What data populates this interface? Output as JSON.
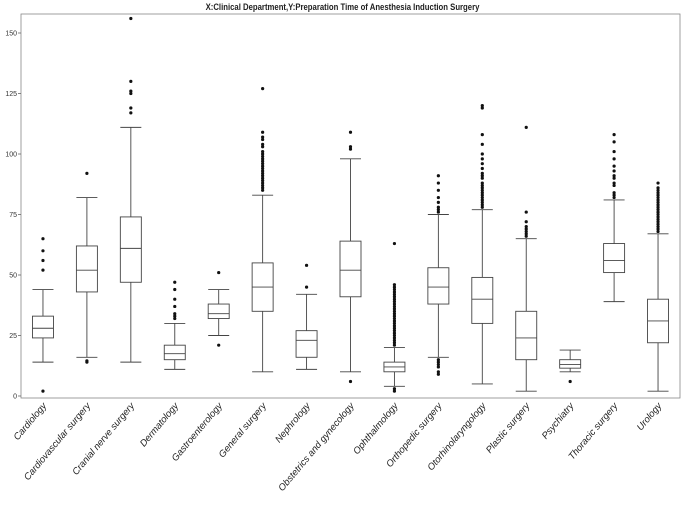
{
  "chart_data": {
    "type": "boxplot",
    "title": "X:Clinical Department,Y:Preparation Time of Anesthesia Induction Surgery",
    "xlabel": "",
    "ylabel": "",
    "ylim": [
      0,
      155
    ],
    "yticks": [
      0,
      25,
      50,
      75,
      100,
      125,
      150
    ],
    "grid": false,
    "categories": [
      "Cardiology",
      "Cardiovascular surgery",
      "Cranial nerve surgery",
      "Dermatology",
      "Gastroenterology",
      "General surgery",
      "Nephrology",
      "Obstetrics and gynecology",
      "Ophthalmology",
      "Orthopedic surgery",
      "Otorhinolaryngology",
      "Plastic surgery",
      "Psychiatry",
      "Thoracic surgery",
      "Urology"
    ],
    "boxes": [
      {
        "whisker_low": 14,
        "q1": 24,
        "median": 28,
        "q3": 33,
        "whisker_high": 44,
        "outliers": [
          2,
          52,
          56,
          60,
          65
        ]
      },
      {
        "whisker_low": 16,
        "q1": 43,
        "median": 52,
        "q3": 62,
        "whisker_high": 82,
        "outliers": [
          14,
          14.5,
          92
        ]
      },
      {
        "whisker_low": 14,
        "q1": 47,
        "median": 61,
        "q3": 74,
        "whisker_high": 111,
        "outliers": [
          117,
          119,
          125,
          126,
          130,
          156
        ]
      },
      {
        "whisker_low": 11,
        "q1": 15,
        "median": 17.5,
        "q3": 21,
        "whisker_high": 30,
        "outliers": [
          32,
          33,
          34,
          37,
          40,
          44,
          47
        ]
      },
      {
        "whisker_low": 25,
        "q1": 32,
        "median": 34,
        "q3": 38,
        "whisker_high": 44,
        "outliers": [
          21,
          51
        ]
      },
      {
        "whisker_low": 10,
        "q1": 35,
        "median": 45,
        "q3": 55,
        "whisker_high": 83,
        "outliers": [
          85,
          86,
          87,
          88,
          89,
          90,
          91,
          92,
          93,
          94,
          95,
          96,
          97,
          98,
          99,
          100,
          101,
          103,
          104,
          106,
          107,
          109,
          127
        ]
      },
      {
        "whisker_low": 11,
        "q1": 16,
        "median": 23,
        "q3": 27,
        "whisker_high": 42,
        "outliers": [
          45,
          54
        ]
      },
      {
        "whisker_low": 10,
        "q1": 41,
        "median": 52,
        "q3": 64,
        "whisker_high": 98,
        "outliers": [
          6,
          102,
          103,
          109
        ]
      },
      {
        "whisker_low": 4,
        "q1": 10,
        "median": 12,
        "q3": 14,
        "whisker_high": 20,
        "outliers": [
          2,
          3,
          21,
          22,
          23,
          24,
          25,
          26,
          27,
          28,
          29,
          30,
          31,
          32,
          33,
          34,
          35,
          36,
          37,
          38,
          39,
          40,
          41,
          42,
          43,
          44,
          45,
          46,
          63
        ]
      },
      {
        "whisker_low": 16,
        "q1": 38,
        "median": 45,
        "q3": 53,
        "whisker_high": 75,
        "outliers": [
          9,
          10,
          12,
          13,
          14,
          15,
          76,
          77,
          78,
          80,
          82,
          85,
          88,
          91
        ]
      },
      {
        "whisker_low": 5,
        "q1": 30,
        "median": 40,
        "q3": 49,
        "whisker_high": 77,
        "outliers": [
          78,
          79,
          80,
          81,
          82,
          83,
          84,
          85,
          86,
          87,
          88,
          90,
          91,
          92,
          94,
          96,
          98,
          100,
          104,
          108,
          119,
          120
        ]
      },
      {
        "whisker_low": 2,
        "q1": 15,
        "median": 24,
        "q3": 35,
        "whisker_high": 65,
        "outliers": [
          66,
          67,
          68,
          69,
          70,
          72,
          76,
          111
        ]
      },
      {
        "whisker_low": 10,
        "q1": 11.5,
        "median": 13,
        "q3": 15,
        "whisker_high": 19,
        "outliers": [
          6
        ]
      },
      {
        "whisker_low": 39,
        "q1": 51,
        "median": 56,
        "q3": 63,
        "whisker_high": 81,
        "outliers": [
          82,
          83,
          84,
          87,
          88,
          90,
          91,
          93,
          95,
          98,
          101,
          105,
          108
        ]
      },
      {
        "whisker_low": 2,
        "q1": 22,
        "median": 31,
        "q3": 40,
        "whisker_high": 67,
        "outliers": [
          68,
          69,
          70,
          71,
          72,
          73,
          74,
          75,
          76,
          77,
          78,
          79,
          80,
          81,
          82,
          83,
          84,
          85,
          86,
          88
        ]
      }
    ]
  }
}
